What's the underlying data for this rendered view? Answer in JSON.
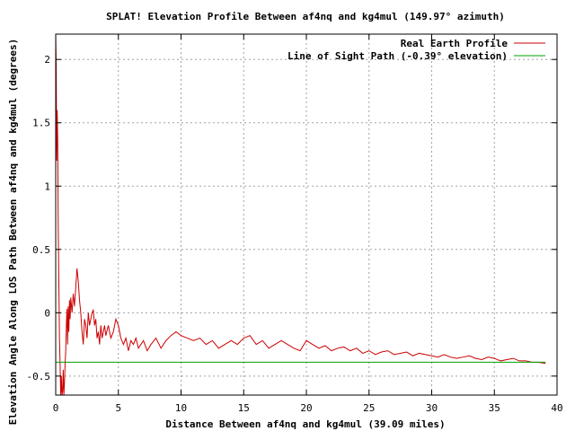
{
  "colors": {
    "background": "#ffffff",
    "frame": "#000000",
    "grid": "#a0a0a0",
    "terrain": "#cc0000",
    "los": "#00a000"
  },
  "chart_data": {
    "type": "line",
    "title": "SPLAT! Elevation Profile Between af4nq and kg4mul (149.97° azimuth)",
    "xlabel": "Distance Between af4nq and kg4mul (39.09 miles)",
    "ylabel": "Elevation Angle Along LOS Path Between af4nq and kg4mul (degrees)",
    "xlim": [
      0,
      40
    ],
    "ylim": [
      -0.65,
      2.2
    ],
    "xticks": [
      0,
      5,
      10,
      15,
      20,
      25,
      30,
      35,
      40
    ],
    "xtick_labels": [
      "0",
      "5",
      "10",
      "15",
      "20",
      "25",
      "30",
      "35",
      "40"
    ],
    "yticks": [
      -0.5,
      0,
      0.5,
      1,
      1.5,
      2
    ],
    "ytick_labels": [
      "-0.5",
      "0",
      "0.5",
      "1",
      "1.5",
      "2"
    ],
    "grid": true,
    "legend_position": "top-right",
    "series": [
      {
        "name": "Real Earth Profile",
        "color": "#cc0000",
        "x": [
          0,
          0.04,
          0.08,
          0.12,
          0.16,
          0.2,
          0.25,
          0.3,
          0.35,
          0.4,
          0.45,
          0.5,
          0.55,
          0.6,
          0.65,
          0.7,
          0.75,
          0.8,
          0.85,
          0.9,
          0.95,
          1.0,
          1.05,
          1.1,
          1.15,
          1.2,
          1.3,
          1.4,
          1.5,
          1.6,
          1.7,
          1.8,
          1.9,
          2.0,
          2.1,
          2.2,
          2.3,
          2.4,
          2.5,
          2.6,
          2.7,
          2.8,
          2.9,
          3.0,
          3.1,
          3.2,
          3.3,
          3.4,
          3.5,
          3.6,
          3.7,
          3.8,
          3.9,
          4.0,
          4.2,
          4.4,
          4.6,
          4.8,
          5.0,
          5.2,
          5.4,
          5.6,
          5.8,
          6.0,
          6.2,
          6.4,
          6.6,
          6.8,
          7.0,
          7.3,
          7.6,
          8.0,
          8.4,
          8.8,
          9.2,
          9.6,
          10.0,
          10.5,
          11.0,
          11.5,
          12.0,
          12.5,
          13.0,
          13.5,
          14.0,
          14.5,
          15.0,
          15.5,
          16.0,
          16.5,
          17.0,
          17.5,
          18.0,
          18.5,
          19.0,
          19.5,
          20.0,
          20.5,
          21.0,
          21.5,
          22.0,
          22.5,
          23.0,
          23.5,
          24.0,
          24.5,
          25.0,
          25.5,
          26.0,
          26.5,
          27.0,
          27.5,
          28.0,
          28.5,
          29.0,
          29.5,
          30.0,
          30.5,
          31.0,
          31.5,
          32.0,
          32.5,
          33.0,
          33.5,
          34.0,
          34.5,
          35.0,
          35.5,
          36.0,
          36.5,
          37.0,
          37.5,
          38.0,
          38.5,
          39.09
        ],
        "y": [
          2.2,
          1.94,
          1.2,
          1.6,
          1.38,
          0.7,
          0.25,
          -0.2,
          -0.4,
          -0.65,
          -0.5,
          -0.65,
          -0.62,
          -0.45,
          -0.65,
          -0.55,
          -0.4,
          -0.3,
          -0.1,
          0.03,
          -0.25,
          0.05,
          -0.15,
          0.1,
          -0.05,
          0.12,
          0.0,
          0.15,
          0.05,
          0.2,
          0.35,
          0.25,
          0.1,
          0.0,
          -0.15,
          -0.25,
          -0.05,
          -0.1,
          -0.2,
          0.0,
          -0.1,
          -0.05,
          0.0,
          0.02,
          -0.1,
          -0.05,
          -0.2,
          -0.15,
          -0.25,
          -0.1,
          -0.2,
          -0.15,
          -0.1,
          -0.18,
          -0.1,
          -0.2,
          -0.15,
          -0.05,
          -0.1,
          -0.2,
          -0.25,
          -0.2,
          -0.3,
          -0.22,
          -0.25,
          -0.2,
          -0.28,
          -0.25,
          -0.22,
          -0.3,
          -0.25,
          -0.2,
          -0.28,
          -0.22,
          -0.18,
          -0.15,
          -0.18,
          -0.2,
          -0.22,
          -0.2,
          -0.25,
          -0.22,
          -0.28,
          -0.25,
          -0.22,
          -0.25,
          -0.2,
          -0.18,
          -0.25,
          -0.22,
          -0.28,
          -0.25,
          -0.22,
          -0.25,
          -0.28,
          -0.3,
          -0.22,
          -0.25,
          -0.28,
          -0.26,
          -0.3,
          -0.28,
          -0.27,
          -0.3,
          -0.28,
          -0.32,
          -0.3,
          -0.33,
          -0.31,
          -0.3,
          -0.33,
          -0.32,
          -0.31,
          -0.34,
          -0.32,
          -0.33,
          -0.34,
          -0.35,
          -0.33,
          -0.35,
          -0.36,
          -0.35,
          -0.34,
          -0.36,
          -0.37,
          -0.35,
          -0.36,
          -0.38,
          -0.37,
          -0.36,
          -0.38,
          -0.38,
          -0.39,
          -0.39,
          -0.4
        ]
      },
      {
        "name": "Line of Sight Path (-0.39° elevation)",
        "color": "#00a000",
        "x": [
          0,
          39.09
        ],
        "y": [
          -0.39,
          -0.39
        ]
      }
    ]
  }
}
